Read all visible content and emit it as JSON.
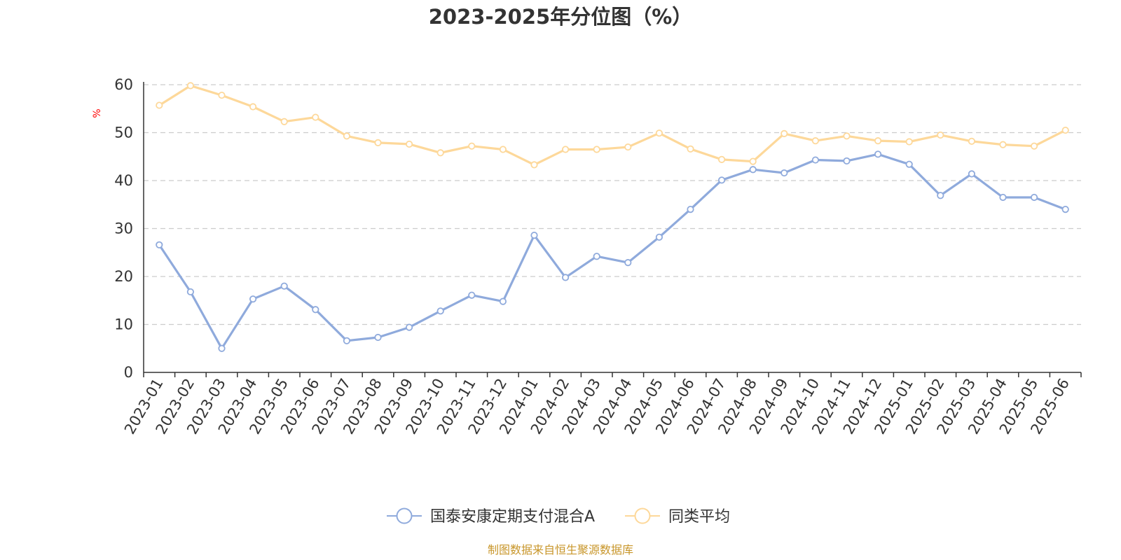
{
  "chart_data": {
    "type": "line",
    "title": "2023-2025年分位图（%）",
    "ylabel": "%",
    "xlabel": "",
    "ylim": [
      0,
      60
    ],
    "yticks": [
      "0",
      "10",
      "20",
      "30",
      "40",
      "50",
      "60"
    ],
    "grid": true,
    "legend_placement": "bottom-center",
    "categories": [
      "2023-01",
      "2023-02",
      "2023-03",
      "2023-04",
      "2023-05",
      "2023-06",
      "2023-07",
      "2023-08",
      "2023-09",
      "2023-10",
      "2023-11",
      "2023-12",
      "2024-01",
      "2024-02",
      "2024-03",
      "2024-04",
      "2024-05",
      "2024-06",
      "2024-07",
      "2024-08",
      "2024-09",
      "2024-10",
      "2024-11",
      "2024-12",
      "2025-01",
      "2025-02",
      "2025-03",
      "2025-04",
      "2025-05",
      "2025-06"
    ],
    "series": [
      {
        "name": "国泰安康定期支付混合A",
        "color": "#8faadc",
        "values": [
          26.6,
          16.8,
          5.0,
          15.3,
          18.0,
          13.1,
          6.6,
          7.3,
          9.4,
          12.8,
          16.1,
          14.8,
          28.6,
          19.8,
          24.2,
          22.9,
          28.2,
          34.0,
          40.1,
          42.3,
          41.6,
          44.3,
          44.1,
          45.5,
          43.4,
          36.9,
          41.4,
          36.5,
          36.5,
          34.0
        ]
      },
      {
        "name": "同类平均",
        "color": "#fdd89a",
        "values": [
          55.7,
          59.8,
          57.8,
          55.4,
          52.3,
          53.2,
          49.3,
          47.9,
          47.6,
          45.8,
          47.2,
          46.5,
          43.3,
          46.5,
          46.5,
          47.0,
          49.9,
          46.6,
          44.4,
          44.0,
          49.8,
          48.3,
          49.3,
          48.3,
          48.1,
          49.5,
          48.2,
          47.5,
          47.2,
          50.5
        ]
      }
    ]
  },
  "colors": {
    "unit_label": "#ff0000",
    "source_text": "#c8962a",
    "axis": "#333333",
    "grid": "#cccccc"
  },
  "source": "制图数据来自恒生聚源数据库"
}
